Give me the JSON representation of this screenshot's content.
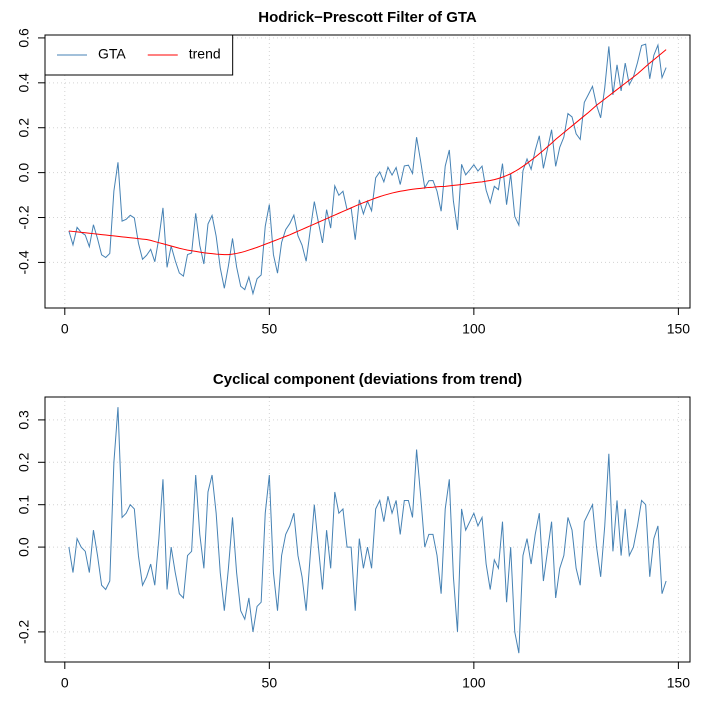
{
  "chart_data": [
    {
      "type": "line",
      "title": "Hodrick−Prescott Filter of GTA",
      "x": [
        1,
        2,
        3,
        4,
        5,
        6,
        7,
        8,
        9,
        10,
        11,
        12,
        13,
        14,
        15,
        16,
        17,
        18,
        19,
        20,
        21,
        22,
        23,
        24,
        25,
        26,
        27,
        28,
        29,
        30,
        31,
        32,
        33,
        34,
        35,
        36,
        37,
        38,
        39,
        40,
        41,
        42,
        43,
        44,
        45,
        46,
        47,
        48,
        49,
        50,
        51,
        52,
        53,
        54,
        55,
        56,
        57,
        58,
        59,
        60,
        61,
        62,
        63,
        64,
        65,
        66,
        67,
        68,
        69,
        70,
        71,
        72,
        73,
        74,
        75,
        76,
        77,
        78,
        79,
        80,
        81,
        82,
        83,
        84,
        85,
        86,
        87,
        88,
        89,
        90,
        91,
        92,
        93,
        94,
        95,
        96,
        97,
        98,
        99,
        100,
        101,
        102,
        103,
        104,
        105,
        106,
        107,
        108,
        109,
        110,
        111,
        112,
        113,
        114,
        115,
        116,
        117,
        118,
        119,
        120,
        121,
        122,
        123,
        124,
        125,
        126,
        127,
        128,
        129,
        130,
        131,
        132,
        133,
        134,
        135,
        136,
        137,
        138,
        139,
        140,
        141,
        142,
        143,
        144,
        145,
        146,
        147
      ],
      "series": [
        {
          "name": "GTA",
          "color": "#4682b4",
          "values": [
            -0.26,
            -0.322,
            -0.244,
            -0.266,
            -0.278,
            -0.33,
            -0.232,
            -0.294,
            -0.366,
            -0.378,
            -0.36,
            -0.082,
            0.046,
            -0.216,
            -0.208,
            -0.19,
            -0.202,
            -0.314,
            -0.386,
            -0.368,
            -0.342,
            -0.397,
            -0.292,
            -0.157,
            -0.422,
            -0.327,
            -0.392,
            -0.447,
            -0.461,
            -0.365,
            -0.358,
            -0.181,
            -0.324,
            -0.407,
            -0.229,
            -0.191,
            -0.283,
            -0.424,
            -0.515,
            -0.415,
            -0.293,
            -0.42,
            -0.506,
            -0.521,
            -0.465,
            -0.539,
            -0.473,
            -0.456,
            -0.239,
            -0.142,
            -0.365,
            -0.448,
            -0.311,
            -0.254,
            -0.227,
            -0.189,
            -0.281,
            -0.323,
            -0.395,
            -0.257,
            -0.129,
            -0.221,
            -0.313,
            -0.165,
            -0.247,
            -0.059,
            -0.101,
            -0.083,
            -0.165,
            -0.157,
            -0.299,
            -0.121,
            -0.184,
            -0.127,
            -0.17,
            -0.023,
            0.003,
            -0.041,
            0.024,
            -0.011,
            0.023,
            -0.053,
            0.03,
            0.033,
            -0.004,
            0.158,
            0.05,
            -0.068,
            -0.036,
            -0.035,
            -0.083,
            -0.172,
            0.029,
            0.101,
            -0.127,
            -0.255,
            0.037,
            -0.01,
            0.012,
            0.035,
            0.007,
            0.029,
            -0.078,
            -0.135,
            -0.061,
            -0.076,
            0.04,
            -0.143,
            -0.005,
            -0.195,
            -0.234,
            0.008,
            0.061,
            0.015,
            0.099,
            0.164,
            0.019,
            0.105,
            0.191,
            0.028,
            0.113,
            0.158,
            0.263,
            0.248,
            0.173,
            0.148,
            0.313,
            0.348,
            0.384,
            0.3,
            0.244,
            0.378,
            0.562,
            0.346,
            0.48,
            0.364,
            0.488,
            0.392,
            0.426,
            0.49,
            0.566,
            0.572,
            0.418,
            0.523,
            0.568,
            0.423,
            0.468
          ]
        },
        {
          "name": "trend",
          "color": "#ff0000",
          "values": [
            -0.26,
            -0.262,
            -0.264,
            -0.266,
            -0.268,
            -0.27,
            -0.272,
            -0.274,
            -0.276,
            -0.278,
            -0.28,
            -0.282,
            -0.284,
            -0.286,
            -0.288,
            -0.29,
            -0.292,
            -0.294,
            -0.296,
            -0.298,
            -0.302,
            -0.307,
            -0.312,
            -0.317,
            -0.322,
            -0.327,
            -0.332,
            -0.337,
            -0.341,
            -0.345,
            -0.348,
            -0.351,
            -0.354,
            -0.357,
            -0.359,
            -0.361,
            -0.363,
            -0.364,
            -0.365,
            -0.365,
            -0.363,
            -0.36,
            -0.356,
            -0.351,
            -0.345,
            -0.339,
            -0.333,
            -0.326,
            -0.319,
            -0.312,
            -0.305,
            -0.298,
            -0.291,
            -0.284,
            -0.277,
            -0.269,
            -0.261,
            -0.253,
            -0.245,
            -0.237,
            -0.229,
            -0.221,
            -0.213,
            -0.205,
            -0.197,
            -0.189,
            -0.181,
            -0.173,
            -0.165,
            -0.157,
            -0.149,
            -0.141,
            -0.134,
            -0.127,
            -0.12,
            -0.113,
            -0.107,
            -0.101,
            -0.096,
            -0.091,
            -0.087,
            -0.083,
            -0.08,
            -0.077,
            -0.074,
            -0.072,
            -0.07,
            -0.068,
            -0.066,
            -0.065,
            -0.063,
            -0.062,
            -0.061,
            -0.059,
            -0.057,
            -0.055,
            -0.053,
            -0.05,
            -0.048,
            -0.045,
            -0.043,
            -0.041,
            -0.038,
            -0.035,
            -0.031,
            -0.026,
            -0.02,
            -0.013,
            -0.005,
            0.005,
            0.016,
            0.028,
            0.041,
            0.055,
            0.069,
            0.084,
            0.099,
            0.115,
            0.131,
            0.148,
            0.163,
            0.178,
            0.193,
            0.208,
            0.223,
            0.238,
            0.253,
            0.268,
            0.284,
            0.3,
            0.314,
            0.328,
            0.342,
            0.356,
            0.37,
            0.384,
            0.398,
            0.412,
            0.426,
            0.44,
            0.456,
            0.472,
            0.488,
            0.503,
            0.518,
            0.533,
            0.548
          ]
        }
      ],
      "xlim": [
        -4.84,
        152.84
      ],
      "xticks": [
        0,
        50,
        100,
        150
      ],
      "ylim": [
        -0.603,
        0.613
      ],
      "yticks": [
        -0.4,
        -0.2,
        {
          "value": 0,
          "label": "0.0"
        },
        0.2,
        0.4,
        0.6
      ],
      "grid": true,
      "legend": "topleft"
    },
    {
      "type": "line",
      "title": "Cyclical component (deviations from trend)",
      "x": [
        1,
        2,
        3,
        4,
        5,
        6,
        7,
        8,
        9,
        10,
        11,
        12,
        13,
        14,
        15,
        16,
        17,
        18,
        19,
        20,
        21,
        22,
        23,
        24,
        25,
        26,
        27,
        28,
        29,
        30,
        31,
        32,
        33,
        34,
        35,
        36,
        37,
        38,
        39,
        40,
        41,
        42,
        43,
        44,
        45,
        46,
        47,
        48,
        49,
        50,
        51,
        52,
        53,
        54,
        55,
        56,
        57,
        58,
        59,
        60,
        61,
        62,
        63,
        64,
        65,
        66,
        67,
        68,
        69,
        70,
        71,
        72,
        73,
        74,
        75,
        76,
        77,
        78,
        79,
        80,
        81,
        82,
        83,
        84,
        85,
        86,
        87,
        88,
        89,
        90,
        91,
        92,
        93,
        94,
        95,
        96,
        97,
        98,
        99,
        100,
        101,
        102,
        103,
        104,
        105,
        106,
        107,
        108,
        109,
        110,
        111,
        112,
        113,
        114,
        115,
        116,
        117,
        118,
        119,
        120,
        121,
        122,
        123,
        124,
        125,
        126,
        127,
        128,
        129,
        130,
        131,
        132,
        133,
        134,
        135,
        136,
        137,
        138,
        139,
        140,
        141,
        142,
        143,
        144,
        145,
        146,
        147
      ],
      "values": [
        0.0,
        -0.06,
        0.02,
        0.0,
        -0.01,
        -0.06,
        0.04,
        -0.02,
        -0.09,
        -0.1,
        -0.08,
        0.2,
        0.33,
        0.07,
        0.08,
        0.1,
        0.09,
        -0.02,
        -0.09,
        -0.07,
        -0.04,
        -0.09,
        0.02,
        0.16,
        -0.1,
        0.0,
        -0.06,
        -0.11,
        -0.12,
        -0.02,
        -0.01,
        0.17,
        0.03,
        -0.05,
        0.13,
        0.17,
        0.08,
        -0.06,
        -0.15,
        -0.05,
        0.07,
        -0.06,
        -0.15,
        -0.17,
        -0.12,
        -0.2,
        -0.14,
        -0.13,
        0.08,
        0.17,
        -0.06,
        -0.15,
        -0.02,
        0.03,
        0.05,
        0.08,
        -0.02,
        -0.07,
        -0.15,
        -0.02,
        0.1,
        0.0,
        -0.1,
        0.04,
        -0.05,
        0.13,
        0.08,
        0.09,
        0.0,
        0.0,
        -0.15,
        0.02,
        -0.05,
        0.0,
        -0.05,
        0.09,
        0.11,
        0.06,
        0.12,
        0.08,
        0.11,
        0.03,
        0.11,
        0.11,
        0.07,
        0.23,
        0.12,
        0.0,
        0.03,
        0.03,
        -0.02,
        -0.11,
        0.09,
        0.16,
        -0.07,
        -0.2,
        0.09,
        0.04,
        0.06,
        0.08,
        0.05,
        0.07,
        -0.04,
        -0.1,
        -0.03,
        -0.05,
        0.06,
        -0.13,
        0.0,
        -0.2,
        -0.25,
        -0.02,
        0.02,
        -0.04,
        0.03,
        0.08,
        -0.08,
        -0.01,
        0.06,
        -0.12,
        -0.05,
        -0.02,
        0.07,
        0.04,
        -0.05,
        -0.09,
        0.06,
        0.08,
        0.1,
        0.0,
        -0.07,
        0.05,
        0.22,
        -0.01,
        0.11,
        -0.02,
        0.09,
        -0.02,
        0.0,
        0.05,
        0.11,
        0.1,
        -0.07,
        0.02,
        0.05,
        -0.11,
        -0.08
      ],
      "color": "#4682b4",
      "xlim": [
        -4.84,
        152.84
      ],
      "xticks": [
        0,
        50,
        100,
        150
      ],
      "ylim": [
        -0.271,
        0.354
      ],
      "yticks": [
        -0.2,
        {
          "value": 0,
          "label": "0.0"
        },
        0.1,
        0.2,
        0.3
      ],
      "grid": true
    }
  ]
}
